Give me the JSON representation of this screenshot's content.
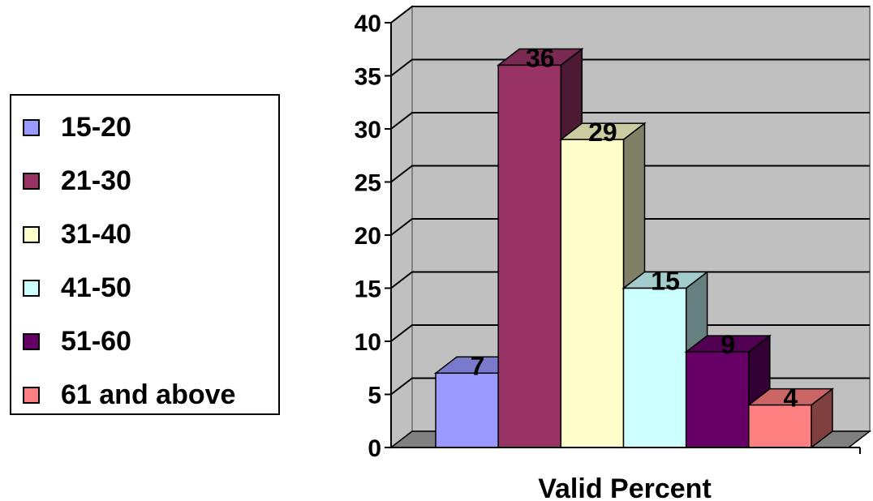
{
  "chart_data": {
    "type": "bar",
    "title": "",
    "xlabel": "Valid Percent",
    "ylabel": "",
    "ylim": [
      0,
      40
    ],
    "yticks": [
      0,
      5,
      10,
      15,
      20,
      25,
      30,
      35,
      40
    ],
    "grid": true,
    "legend_position": "left",
    "categories": [
      "Valid Percent"
    ],
    "series": [
      {
        "name": "15-20",
        "value": 7,
        "label": "7",
        "color": "#9999ff"
      },
      {
        "name": "21-30",
        "value": 36,
        "label": "36",
        "color": "#993366"
      },
      {
        "name": "31-40",
        "value": 29,
        "label": "29",
        "color": "#ffffcc"
      },
      {
        "name": "41-50",
        "value": 15,
        "label": "15",
        "color": "#ccffff"
      },
      {
        "name": "51-60",
        "value": 9,
        "label": "9",
        "color": "#660066"
      },
      {
        "name": "61 and above",
        "value": 4,
        "label": "4",
        "color": "#ff8080"
      }
    ]
  }
}
